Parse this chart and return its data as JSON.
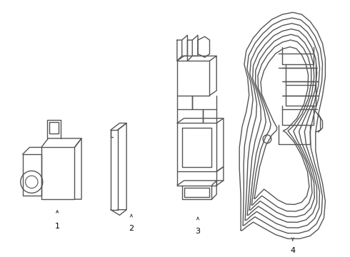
{
  "bg_color": "#ffffff",
  "line_color": "#555555",
  "line_width": 1.0,
  "label_color": "#000000",
  "label_fontsize": 8,
  "figsize": [
    4.9,
    3.6
  ],
  "dpi": 100
}
